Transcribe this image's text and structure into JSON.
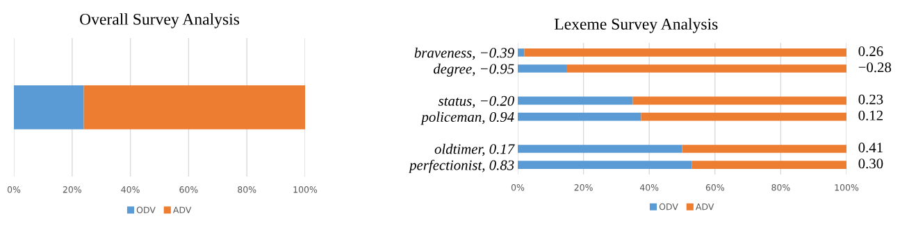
{
  "chart_data": [
    {
      "type": "bar",
      "title": "Overall Survey Analysis",
      "orientation": "horizontal",
      "stacked": true,
      "categories": [
        null
      ],
      "series": [
        {
          "name": "ODV",
          "color": "#5b9bd5",
          "values": [
            24
          ]
        },
        {
          "name": "ADV",
          "color": "#ed7d31",
          "values": [
            76
          ]
        }
      ],
      "xlim": [
        0,
        100
      ],
      "xticks": [
        {
          "value": 0,
          "label": "0%"
        },
        {
          "value": 20,
          "label": "20%"
        },
        {
          "value": 40,
          "label": "40%"
        },
        {
          "value": 60,
          "label": "60%"
        },
        {
          "value": 80,
          "label": "80%"
        },
        {
          "value": 100,
          "label": "100%"
        }
      ],
      "grid": "x",
      "legend": "bottom"
    },
    {
      "type": "bar",
      "title": "Lexeme Survey Analysis",
      "orientation": "horizontal",
      "stacked": true,
      "categories": [
        "braveness, −0.39",
        "degree, −0.95",
        null,
        "status, −0.20",
        "policeman, 0.94",
        null,
        "oldtimer, 0.17",
        "perfectionist, 0.83"
      ],
      "series": [
        {
          "name": "ODV",
          "color": "#5b9bd5",
          "values": [
            2,
            15,
            null,
            35,
            37.5,
            null,
            50,
            53
          ]
        },
        {
          "name": "ADV",
          "color": "#ed7d31",
          "values": [
            98,
            85,
            null,
            65,
            62.5,
            null,
            50,
            47
          ]
        }
      ],
      "xlim": [
        0,
        100
      ],
      "xticks": [
        {
          "value": 0,
          "label": "0%"
        },
        {
          "value": 20,
          "label": "20%"
        },
        {
          "value": 40,
          "label": "40%"
        },
        {
          "value": 60,
          "label": "60%"
        },
        {
          "value": 80,
          "label": "80%"
        },
        {
          "value": 100,
          "label": "100%"
        }
      ],
      "annotations": [
        "0.26",
        "−0.28",
        "0.23",
        "0.12",
        "0.41",
        "0.30"
      ],
      "grid": "x",
      "legend": "bottom"
    }
  ]
}
